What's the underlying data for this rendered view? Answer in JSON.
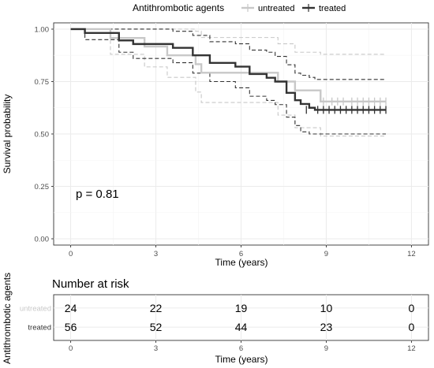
{
  "chart_data": [
    {
      "type": "line",
      "subtype": "kaplan-meier",
      "xlabel": "Time (years)",
      "ylabel": "Survival probability",
      "xlim": [
        -0.6,
        12.6
      ],
      "ylim": [
        -0.03,
        1.03
      ],
      "x_ticks": [
        0,
        3,
        6,
        9,
        12
      ],
      "y_ticks": [
        0.0,
        0.25,
        0.5,
        0.75,
        1.0
      ],
      "y_tick_labels": [
        "0.00",
        "0.25",
        "0.50",
        "0.75",
        "1.00"
      ],
      "grid": true,
      "legend": {
        "title": "Antithrombotic agents",
        "position": "top"
      },
      "annotation": "p = 0.81",
      "series": [
        {
          "name": "untreated",
          "color": "#c8c8c8",
          "x": [
            0,
            1.4,
            2.6,
            3.4,
            4.4,
            4.6,
            4.9,
            5.1,
            6.6,
            7.3,
            7.9,
            8.0,
            8.1,
            8.4,
            8.8,
            11.1
          ],
          "y": [
            1.0,
            0.958,
            0.917,
            0.875,
            0.833,
            0.792,
            0.792,
            0.792,
            0.792,
            0.75,
            0.708,
            0.708,
            0.708,
            0.708,
            0.655,
            0.655
          ],
          "lower": [
            1.0,
            0.88,
            0.82,
            0.77,
            0.7,
            0.65,
            0.65,
            0.65,
            0.65,
            0.59,
            0.53,
            0.53,
            0.53,
            0.53,
            0.49,
            0.49
          ],
          "upper": [
            1.0,
            1.0,
            1.0,
            1.0,
            0.99,
            0.96,
            0.96,
            0.96,
            0.96,
            0.93,
            0.89,
            0.89,
            0.89,
            0.89,
            0.88,
            0.88
          ],
          "censor_x": [
            8.9,
            9.2,
            9.4,
            9.6,
            9.9,
            10.1,
            10.3,
            10.5,
            10.7,
            10.9,
            11.1
          ]
        },
        {
          "name": "treated",
          "color": "#333333",
          "x": [
            0,
            0.5,
            1.7,
            2.2,
            3.6,
            4.3,
            4.9,
            5.8,
            6.3,
            6.9,
            7.2,
            7.6,
            7.9,
            8.1,
            8.4,
            8.6,
            11.1
          ],
          "y": [
            1.0,
            0.982,
            0.946,
            0.929,
            0.911,
            0.875,
            0.839,
            0.821,
            0.786,
            0.768,
            0.75,
            0.696,
            0.661,
            0.643,
            0.625,
            0.615,
            0.615
          ],
          "lower": [
            1.0,
            0.95,
            0.89,
            0.86,
            0.84,
            0.79,
            0.75,
            0.72,
            0.68,
            0.66,
            0.64,
            0.58,
            0.54,
            0.51,
            0.5,
            0.5,
            0.5
          ],
          "upper": [
            1.0,
            1.0,
            1.0,
            1.0,
            0.99,
            0.97,
            0.94,
            0.93,
            0.9,
            0.89,
            0.87,
            0.83,
            0.79,
            0.78,
            0.77,
            0.76,
            0.76
          ],
          "censor_x": [
            8.3,
            8.7,
            8.9,
            9.1,
            9.3,
            9.5,
            9.7,
            9.9,
            10.1,
            10.3,
            10.5,
            10.7,
            10.9,
            11.1
          ]
        }
      ]
    },
    {
      "type": "table",
      "title": "Number at risk",
      "ylabel": "Antithrombotic agents",
      "xlabel": "Time (years)",
      "x_ticks": [
        0,
        3,
        6,
        9,
        12
      ],
      "rows": [
        {
          "name": "untreated",
          "color": "#c8c8c8",
          "values": [
            24,
            22,
            19,
            10,
            0
          ]
        },
        {
          "name": "treated",
          "color": "#333333",
          "values": [
            56,
            52,
            44,
            23,
            0
          ]
        }
      ]
    }
  ]
}
